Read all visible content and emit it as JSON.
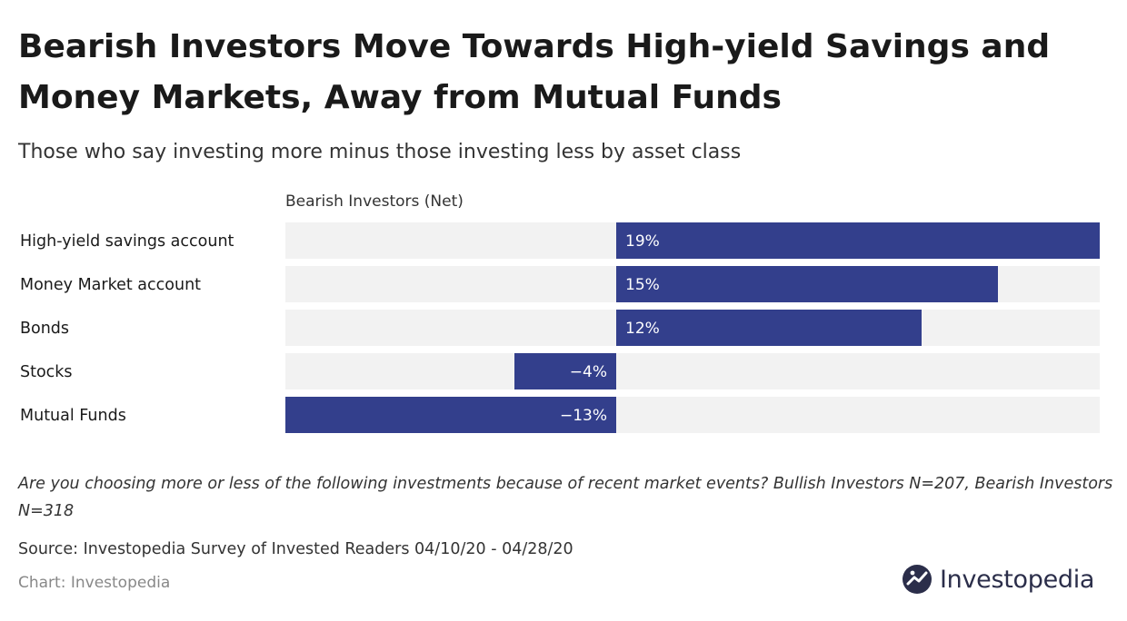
{
  "title": "Bearish Investors Move Towards High-yield Savings and Money Markets, Away from Mutual Funds",
  "subtitle": "Those who say investing more minus those investing less by asset class",
  "question": "Are you choosing more or less of the following investments because of recent market events? Bullish Investors N=207, Bearish Investors N=318",
  "source": "Source: Investopedia Survey of Invested Readers 04/10/20 - 04/28/20",
  "credit": "Chart: Investopedia",
  "brand": {
    "name": "Investopedia",
    "icon": "investopedia-logo-icon"
  },
  "colors": {
    "bar": "#333f8c",
    "track": "#f2f2f2",
    "text": "#1a1a1a"
  },
  "chart_data": {
    "type": "bar",
    "orientation": "horizontal",
    "categories": [
      "High-yield savings account",
      "Money Market account",
      "Bonds",
      "Stocks",
      "Mutual Funds"
    ],
    "series": [
      {
        "name": "Bearish Investors (Net)",
        "values": [
          19,
          15,
          12,
          -4,
          -13
        ]
      }
    ],
    "value_labels": [
      "19%",
      "15%",
      "12%",
      "−4%",
      "−13%"
    ],
    "xlim": [
      -13,
      19
    ],
    "grid": false,
    "legend": "top"
  }
}
